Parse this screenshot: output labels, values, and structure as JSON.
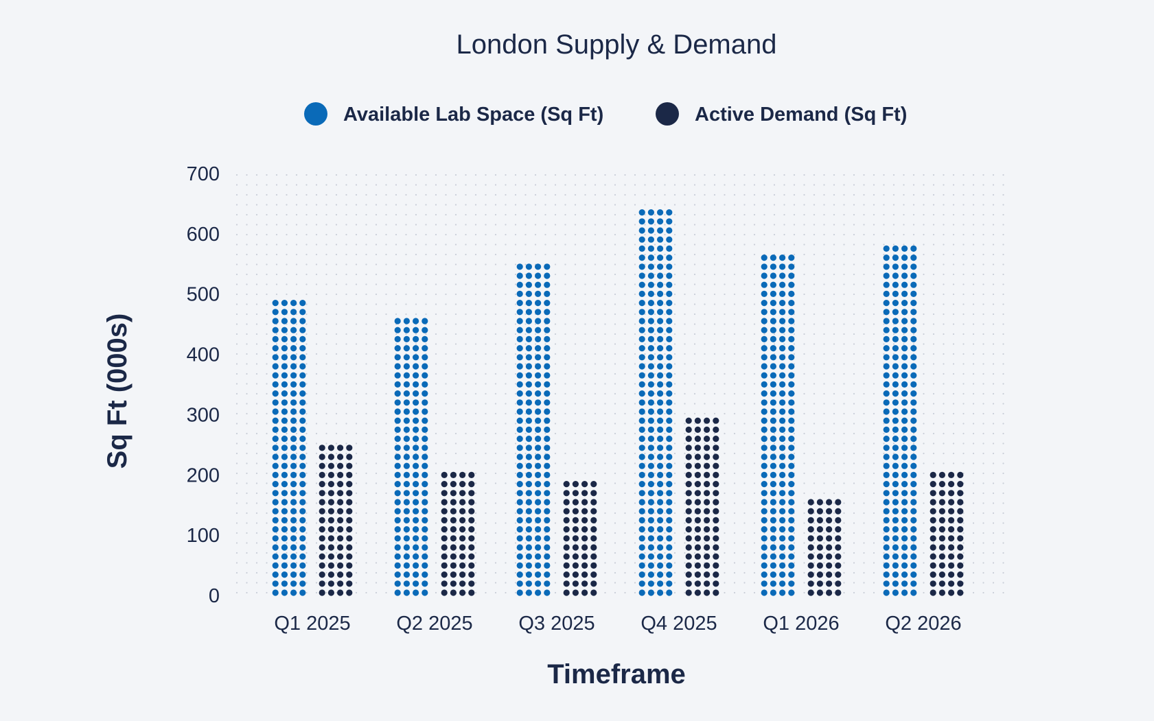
{
  "chart_data": {
    "type": "bar",
    "title": "London Supply & Demand",
    "xlabel": "Timeframe",
    "ylabel": "Sq Ft (000s)",
    "categories": [
      "Q1 2025",
      "Q2 2025",
      "Q3 2025",
      "Q4 2025",
      "Q1 2026",
      "Q2 2026"
    ],
    "series": [
      {
        "name": "Available Lab Space (Sq Ft)",
        "color": "#0a6ab8",
        "values": [
          490,
          460,
          550,
          645,
          565,
          580
        ]
      },
      {
        "name": "Active Demand (Sq Ft)",
        "color": "#1b2847",
        "values": [
          255,
          210,
          195,
          300,
          165,
          210
        ]
      }
    ],
    "yticks": [
      "0",
      "100",
      "200",
      "300",
      "400",
      "500",
      "600",
      "700"
    ],
    "ylim": [
      0,
      700
    ],
    "legend": "top-center",
    "grid": true,
    "style": "dot-matrix"
  }
}
